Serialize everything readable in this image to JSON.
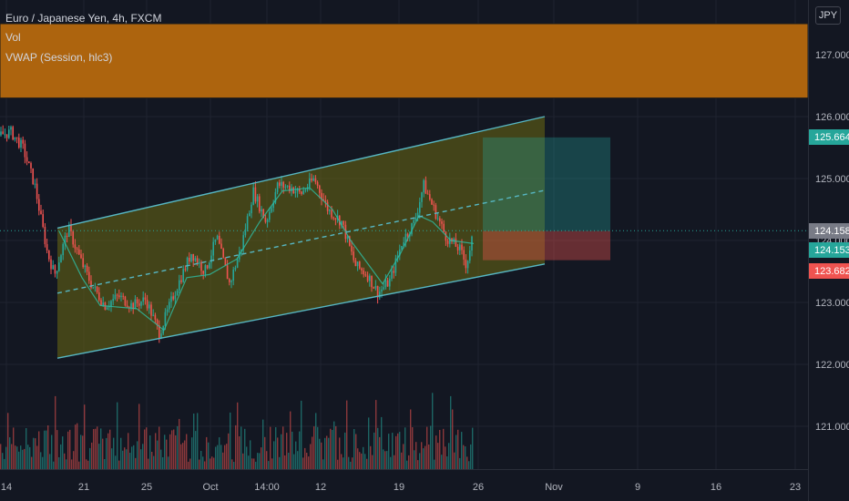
{
  "header": {
    "title": "Euro / Japanese Yen, 4h, FXCM",
    "indicators": [
      "Vol",
      "VWAP (Session, hlc3)"
    ]
  },
  "price_scale": {
    "currency_label": "JPY",
    "ticks": [
      "127.000",
      "126.000",
      "125.000",
      "124.000",
      "123.000",
      "122.000",
      "121.000"
    ],
    "tags": [
      {
        "label": "125.664",
        "value": 125.664,
        "color": "#26a69a"
      },
      {
        "label": "124.158",
        "value": 124.158,
        "color": "#787b86"
      },
      {
        "label": "124.153",
        "value": 124.153,
        "color": "#26a69a"
      },
      {
        "label": "123.682",
        "value": 123.682,
        "color": "#ef5350"
      }
    ]
  },
  "time_scale": {
    "ticks": [
      "14",
      "21",
      "25",
      "Oct",
      "14:00",
      "12",
      "19",
      "26",
      "Nov",
      "9",
      "16",
      "23"
    ]
  },
  "colors": {
    "background": "#131722",
    "up": "#26a69a",
    "down": "#ef5350",
    "channel": "#56b6c2",
    "resistance_zone": "#b5680e",
    "channel_fill": "#6b6a12",
    "profit_zone": "#26a69a",
    "loss_zone": "#ef5350"
  },
  "chart_data": {
    "type": "candlestick",
    "symbol": "EURJPY",
    "timeframe": "4h",
    "x_axis_labels": [
      "14",
      "21",
      "25",
      "Oct",
      "14:00",
      "12",
      "19",
      "26",
      "Nov",
      "9",
      "16",
      "23"
    ],
    "ylim": [
      120.3,
      127.6
    ],
    "close_path": [
      [
        0,
        125.7
      ],
      [
        12,
        125.75
      ],
      [
        25,
        125.5
      ],
      [
        38,
        124.9
      ],
      [
        52,
        123.8
      ],
      [
        60,
        123.45
      ],
      [
        75,
        124.2
      ],
      [
        88,
        123.7
      ],
      [
        100,
        123.3
      ],
      [
        115,
        122.95
      ],
      [
        130,
        123.1
      ],
      [
        145,
        122.95
      ],
      [
        160,
        123.05
      ],
      [
        175,
        122.5
      ],
      [
        190,
        123.1
      ],
      [
        210,
        123.8
      ],
      [
        225,
        123.5
      ],
      [
        238,
        124.05
      ],
      [
        252,
        123.3
      ],
      [
        265,
        123.9
      ],
      [
        278,
        124.8
      ],
      [
        292,
        124.3
      ],
      [
        305,
        124.9
      ],
      [
        320,
        124.85
      ],
      [
        330,
        124.75
      ],
      [
        345,
        125.0
      ],
      [
        360,
        124.5
      ],
      [
        375,
        124.3
      ],
      [
        390,
        123.6
      ],
      [
        403,
        123.45
      ],
      [
        415,
        123.15
      ],
      [
        428,
        123.35
      ],
      [
        442,
        124.0
      ],
      [
        455,
        124.3
      ],
      [
        465,
        124.9
      ],
      [
        478,
        124.45
      ],
      [
        490,
        124.05
      ],
      [
        505,
        123.85
      ],
      [
        512,
        123.6
      ],
      [
        520,
        124.15
      ]
    ],
    "vwap_path": [
      [
        65,
        124.15
      ],
      [
        90,
        123.4
      ],
      [
        110,
        122.95
      ],
      [
        150,
        122.9
      ],
      [
        180,
        122.55
      ],
      [
        205,
        123.4
      ],
      [
        230,
        123.45
      ],
      [
        260,
        123.7
      ],
      [
        285,
        124.3
      ],
      [
        310,
        124.8
      ],
      [
        340,
        124.85
      ],
      [
        365,
        124.5
      ],
      [
        385,
        124.0
      ],
      [
        400,
        123.7
      ],
      [
        420,
        123.3
      ],
      [
        440,
        123.8
      ],
      [
        460,
        124.4
      ],
      [
        475,
        124.3
      ],
      [
        495,
        124.0
      ],
      [
        520,
        123.95
      ]
    ],
    "channel": {
      "upper": [
        [
          63,
          124.2
        ],
        [
          598,
          126.0
        ]
      ],
      "lower": [
        [
          63,
          122.1
        ],
        [
          598,
          123.62
        ]
      ],
      "mid": [
        [
          63,
          123.15
        ],
        [
          598,
          124.81
        ]
      ]
    },
    "resistance_zone": {
      "top": 127.5,
      "bottom": 126.3
    },
    "position": {
      "entry": 124.153,
      "target": 125.664,
      "stop": 123.682,
      "x_start": 530,
      "x_end": 670
    },
    "last_price": 124.158,
    "volume": {
      "base": 515,
      "max_height": 118
    }
  }
}
